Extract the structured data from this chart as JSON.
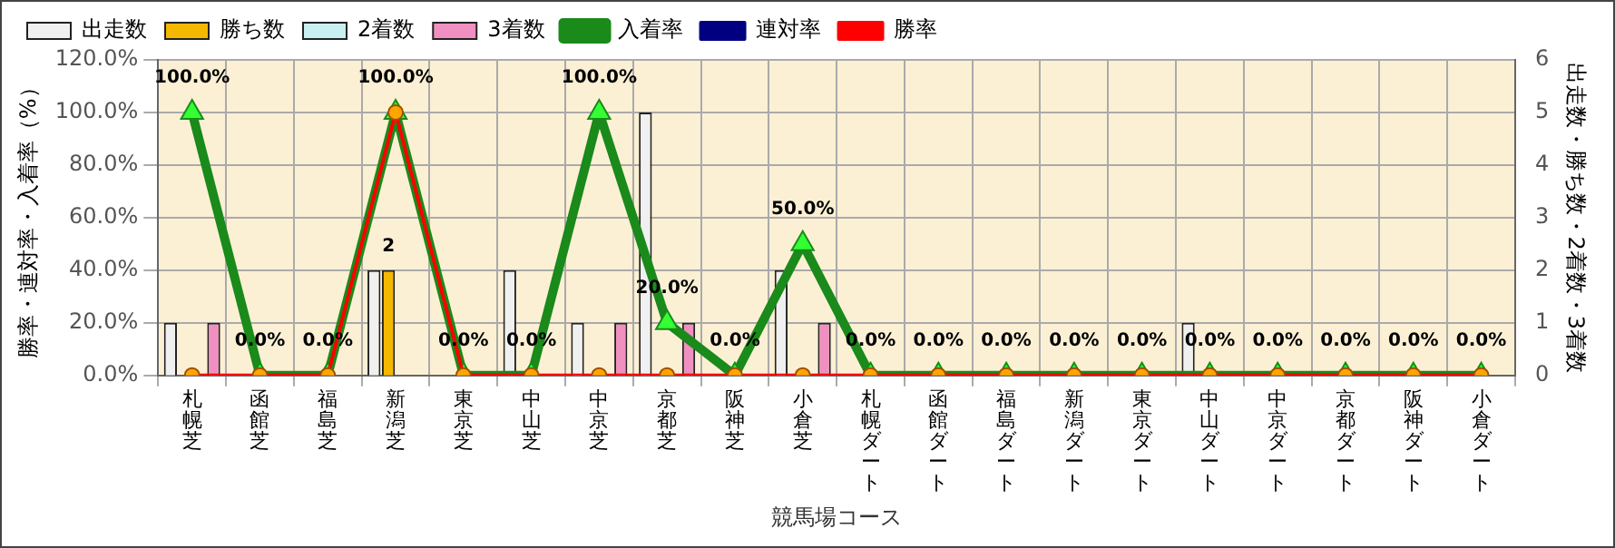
{
  "chart_data": {
    "type": "bar",
    "xlabel": "競馬場コース",
    "ylabel": "勝率・連対率・入着率（%）",
    "y2label": "出走数・勝ち数・2着数・3着数",
    "categories": [
      "札幌芝",
      "函館芝",
      "福島芝",
      "新潟芝",
      "東京芝",
      "中山芝",
      "中京芝",
      "京都芝",
      "阪神芝",
      "小倉芝",
      "札幌ダート",
      "函館ダート",
      "福島ダート",
      "新潟ダート",
      "東京ダート",
      "中山ダート",
      "中京ダート",
      "京都ダート",
      "阪神ダート",
      "小倉ダート"
    ],
    "series": [
      {
        "name": "出走数",
        "axis": "y2",
        "color": "#f0f0f0",
        "values": [
          1,
          0,
          0,
          2,
          0,
          2,
          1,
          5,
          0,
          2,
          0,
          0,
          0,
          0,
          0,
          1,
          0,
          0,
          0,
          0
        ]
      },
      {
        "name": "勝ち数",
        "axis": "y2",
        "color": "#f5b800",
        "values": [
          0,
          0,
          0,
          2,
          0,
          0,
          0,
          0,
          0,
          0,
          0,
          0,
          0,
          0,
          0,
          0,
          0,
          0,
          0,
          0
        ],
        "value_labels": [
          null,
          null,
          null,
          "2",
          null,
          null,
          null,
          null,
          null,
          null,
          null,
          null,
          null,
          null,
          null,
          null,
          null,
          null,
          null,
          null
        ]
      },
      {
        "name": "2着数",
        "axis": "y2",
        "color": "#c8f0f0",
        "values": [
          0,
          0,
          0,
          0,
          0,
          0,
          0,
          0,
          0,
          0,
          0,
          0,
          0,
          0,
          0,
          0,
          0,
          0,
          0,
          0
        ]
      },
      {
        "name": "3着数",
        "axis": "y2",
        "color": "#f090c0",
        "values": [
          1,
          0,
          0,
          0,
          0,
          0,
          1,
          1,
          0,
          1,
          0,
          0,
          0,
          0,
          0,
          0,
          0,
          0,
          0,
          0
        ]
      },
      {
        "name": "入着率",
        "type": "line",
        "marker": "triangle",
        "color": "#1a8a1a",
        "values": [
          100,
          0,
          0,
          100,
          0,
          0,
          100,
          20,
          0,
          50,
          0,
          0,
          0,
          0,
          0,
          0,
          0,
          0,
          0,
          0
        ],
        "value_labels": [
          "100.0%",
          "0.0%",
          "0.0%",
          "100.0%",
          "0.0%",
          "0.0%",
          "100.0%",
          "20.0%",
          "0.0%",
          "50.0%",
          "0.0%",
          "0.0%",
          "0.0%",
          "0.0%",
          "0.0%",
          "0.0%",
          "0.0%",
          "0.0%",
          "0.0%",
          "0.0%"
        ]
      },
      {
        "name": "連対率",
        "type": "line",
        "marker": "diamond",
        "color": "#000080",
        "values": [
          null,
          null,
          null,
          null,
          null,
          null,
          null,
          null,
          null,
          null,
          null,
          null,
          null,
          null,
          null,
          null,
          null,
          null,
          null,
          null
        ]
      },
      {
        "name": "勝率",
        "type": "line",
        "marker": "circle",
        "color": "#ff0000",
        "values": [
          0,
          0,
          0,
          100,
          0,
          0,
          0,
          0,
          0,
          0,
          0,
          0,
          0,
          0,
          0,
          0,
          0,
          0,
          0,
          0
        ]
      }
    ],
    "ylim": [
      0,
      120
    ],
    "yticks": [
      {
        "value": 0,
        "label": "0.0%"
      },
      {
        "value": 20,
        "label": "20.0%"
      },
      {
        "value": 40,
        "label": "40.0%"
      },
      {
        "value": 60,
        "label": "60.0%"
      },
      {
        "value": 80,
        "label": "80.0%"
      },
      {
        "value": 100,
        "label": "100.0%"
      },
      {
        "value": 120,
        "label": "120.0%"
      }
    ],
    "y2lim": [
      0,
      6
    ],
    "y2ticks": [
      0,
      1,
      2,
      3,
      4,
      5,
      6
    ],
    "grid": true,
    "legend": "top"
  }
}
